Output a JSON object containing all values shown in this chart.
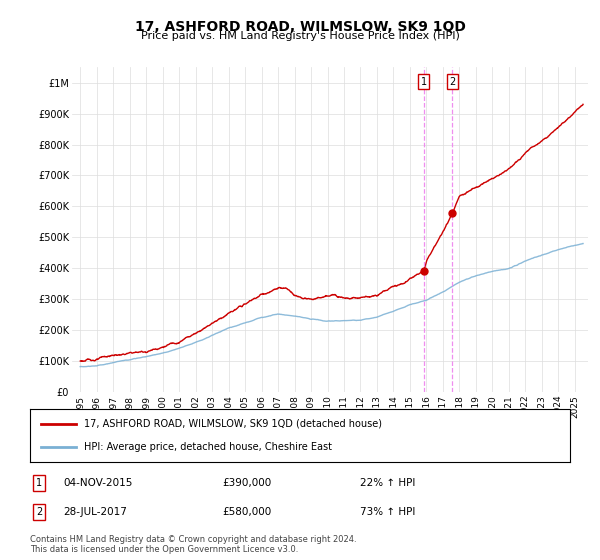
{
  "title": "17, ASHFORD ROAD, WILMSLOW, SK9 1QD",
  "subtitle": "Price paid vs. HM Land Registry's House Price Index (HPI)",
  "ytick_values": [
    0,
    100000,
    200000,
    300000,
    400000,
    500000,
    600000,
    700000,
    800000,
    900000,
    1000000
  ],
  "xlim_start": 1994.5,
  "xlim_end": 2025.8,
  "ylim": [
    0,
    1050000
  ],
  "legend_line1": "17, ASHFORD ROAD, WILMSLOW, SK9 1QD (detached house)",
  "legend_line2": "HPI: Average price, detached house, Cheshire East",
  "line1_color": "#cc0000",
  "line2_color": "#7ab0d4",
  "vline_color": "#ee82ee",
  "transaction1": {
    "date_num": 2015.84,
    "price": 390000,
    "label": "1",
    "date_str": "04-NOV-2015",
    "price_str": "£390,000",
    "pct": "22%"
  },
  "transaction2": {
    "date_num": 2017.58,
    "price": 580000,
    "label": "2",
    "date_str": "28-JUL-2017",
    "price_str": "£580,000",
    "pct": "73%"
  },
  "footnote1": "Contains HM Land Registry data © Crown copyright and database right 2024.",
  "footnote2": "This data is licensed under the Open Government Licence v3.0.",
  "bg_color": "#ffffff",
  "grid_color": "#dddddd",
  "prop_keyframes_x": [
    1995,
    1996,
    1997,
    1998,
    1999,
    2000,
    2001,
    2002,
    2003,
    2004,
    2005,
    2006,
    2007,
    2007.5,
    2008,
    2009,
    2010,
    2011,
    2012,
    2013,
    2014,
    2015,
    2015.84,
    2016,
    2016.5,
    2017.58,
    2018,
    2019,
    2020,
    2021,
    2022,
    2023,
    2024,
    2025.5
  ],
  "prop_keyframes_y": [
    100000,
    105000,
    115000,
    120000,
    125000,
    145000,
    165000,
    195000,
    235000,
    270000,
    295000,
    325000,
    340000,
    335000,
    315000,
    300000,
    305000,
    310000,
    315000,
    325000,
    355000,
    375000,
    390000,
    420000,
    480000,
    580000,
    640000,
    680000,
    710000,
    740000,
    790000,
    830000,
    870000,
    930000
  ],
  "hpi_keyframes_x": [
    1995,
    1996,
    1997,
    1998,
    1999,
    2000,
    2001,
    2002,
    2003,
    2004,
    2005,
    2006,
    2007,
    2008,
    2009,
    2010,
    2011,
    2012,
    2013,
    2014,
    2015,
    2016,
    2017,
    2018,
    2019,
    2020,
    2021,
    2022,
    2023,
    2024,
    2025.5
  ],
  "hpi_keyframes_y": [
    82000,
    87000,
    97000,
    108000,
    118000,
    133000,
    150000,
    168000,
    190000,
    212000,
    228000,
    245000,
    255000,
    245000,
    235000,
    230000,
    228000,
    230000,
    240000,
    260000,
    280000,
    295000,
    320000,
    350000,
    375000,
    385000,
    395000,
    420000,
    440000,
    460000,
    480000
  ]
}
